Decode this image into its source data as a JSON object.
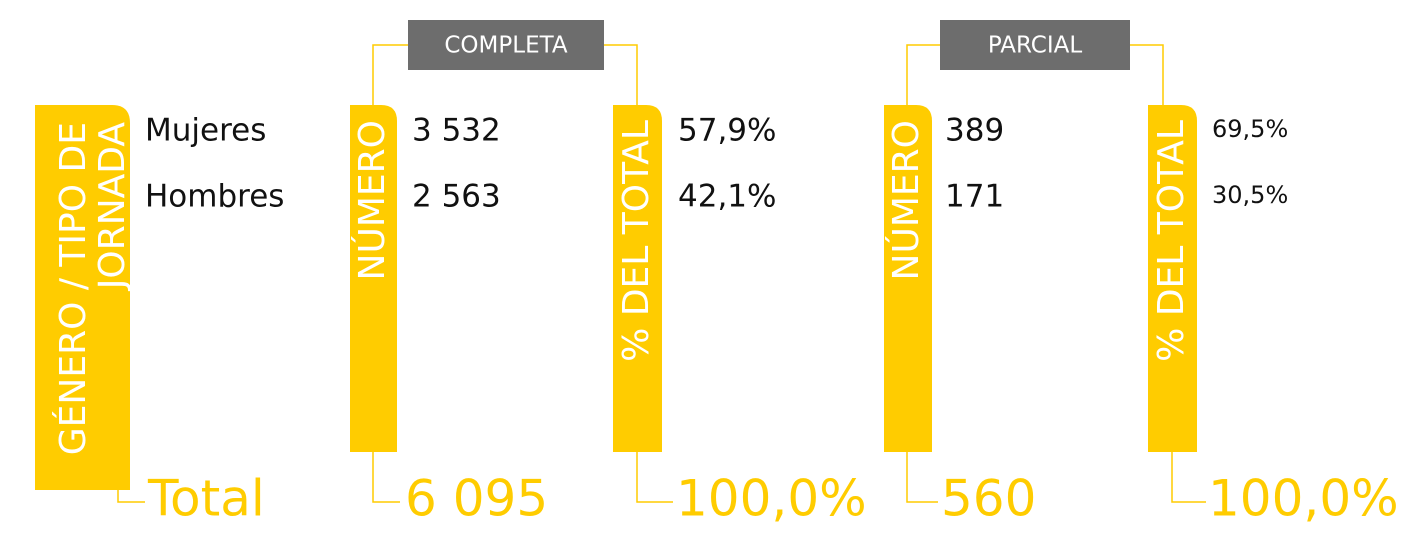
{
  "row_header": [
    "GÉNERO / TIPO DE",
    "JORNADA"
  ],
  "rows": [
    "Mujeres",
    "Hombres"
  ],
  "total_label": "Total",
  "groups": [
    {
      "label": "COMPLETA",
      "columns": [
        "NÚMERO",
        "% DEL TOTAL"
      ],
      "rows": [
        [
          "3 532",
          "57,9%"
        ],
        [
          "2 563",
          "42,1%"
        ]
      ],
      "total": [
        "6 095",
        "100,0%"
      ]
    },
    {
      "label": "PARCIAL",
      "columns": [
        "NÚMERO",
        "% DEL TOTAL"
      ],
      "rows": [
        [
          "389",
          "69,5%"
        ],
        [
          "171",
          "30,5%"
        ]
      ],
      "total": [
        "560",
        "100,0%"
      ]
    }
  ]
}
